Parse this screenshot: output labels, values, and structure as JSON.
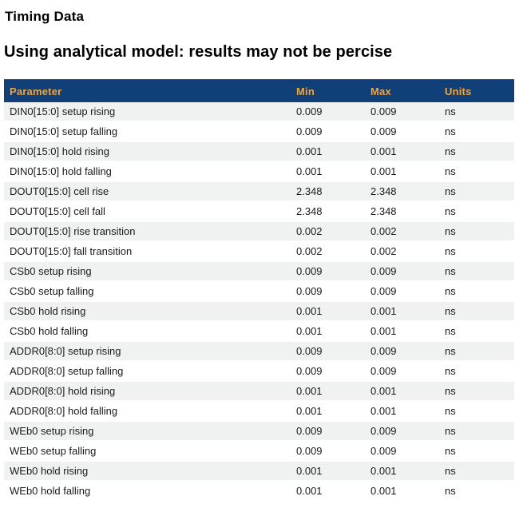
{
  "page": {
    "title": "Timing Data",
    "subtitle": "Using analytical model: results may not be percise"
  },
  "table": {
    "columns": [
      "Parameter",
      "Min",
      "Max",
      "Units"
    ],
    "rows": [
      {
        "parameter": "DIN0[15:0] setup rising",
        "min": "0.009",
        "max": "0.009",
        "units": "ns"
      },
      {
        "parameter": "DIN0[15:0] setup falling",
        "min": "0.009",
        "max": "0.009",
        "units": "ns"
      },
      {
        "parameter": "DIN0[15:0] hold rising",
        "min": "0.001",
        "max": "0.001",
        "units": "ns"
      },
      {
        "parameter": "DIN0[15:0] hold falling",
        "min": "0.001",
        "max": "0.001",
        "units": "ns"
      },
      {
        "parameter": "DOUT0[15:0] cell rise",
        "min": "2.348",
        "max": "2.348",
        "units": "ns"
      },
      {
        "parameter": "DOUT0[15:0] cell fall",
        "min": "2.348",
        "max": "2.348",
        "units": "ns"
      },
      {
        "parameter": "DOUT0[15:0] rise transition",
        "min": "0.002",
        "max": "0.002",
        "units": "ns"
      },
      {
        "parameter": "DOUT0[15:0] fall transition",
        "min": "0.002",
        "max": "0.002",
        "units": "ns"
      },
      {
        "parameter": "CSb0 setup rising",
        "min": "0.009",
        "max": "0.009",
        "units": "ns"
      },
      {
        "parameter": "CSb0 setup falling",
        "min": "0.009",
        "max": "0.009",
        "units": "ns"
      },
      {
        "parameter": "CSb0 hold rising",
        "min": "0.001",
        "max": "0.001",
        "units": "ns"
      },
      {
        "parameter": "CSb0 hold falling",
        "min": "0.001",
        "max": "0.001",
        "units": "ns"
      },
      {
        "parameter": "ADDR0[8:0] setup rising",
        "min": "0.009",
        "max": "0.009",
        "units": "ns"
      },
      {
        "parameter": "ADDR0[8:0] setup falling",
        "min": "0.009",
        "max": "0.009",
        "units": "ns"
      },
      {
        "parameter": "ADDR0[8:0] hold rising",
        "min": "0.001",
        "max": "0.001",
        "units": "ns"
      },
      {
        "parameter": "ADDR0[8:0] hold falling",
        "min": "0.001",
        "max": "0.001",
        "units": "ns"
      },
      {
        "parameter": "WEb0 setup rising",
        "min": "0.009",
        "max": "0.009",
        "units": "ns"
      },
      {
        "parameter": "WEb0 setup falling",
        "min": "0.009",
        "max": "0.009",
        "units": "ns"
      },
      {
        "parameter": "WEb0 hold rising",
        "min": "0.001",
        "max": "0.001",
        "units": "ns"
      },
      {
        "parameter": "WEb0 hold falling",
        "min": "0.001",
        "max": "0.001",
        "units": "ns"
      }
    ]
  },
  "colors": {
    "header_bg": "#114078",
    "header_text": "#F0A43C",
    "row_stripe": "#F0F1F1",
    "body_text": "#1A1A1A",
    "heading_text": "#000000"
  }
}
